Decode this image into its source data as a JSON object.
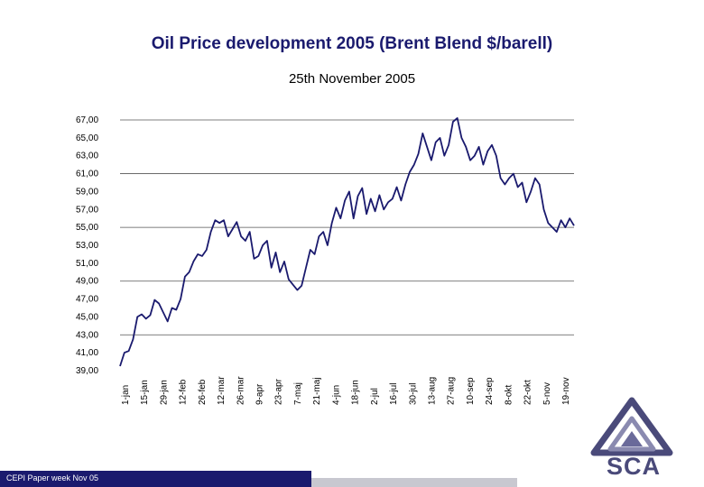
{
  "slide": {
    "footer_text": "CEPI Paper week Nov 05",
    "logo_text": "SCA"
  },
  "colors": {
    "title": "#1a1a6e",
    "line": "#1a1a6e",
    "grid": "#555555",
    "footer": "#1a1a6e",
    "logo": "#4a4a7a"
  },
  "chart_data": {
    "type": "line",
    "title": "Oil Price development 2005 (Brent Blend $/barell)",
    "subtitle": "25th November 2005",
    "xlabel": "",
    "ylabel": "",
    "ylim": [
      39,
      67
    ],
    "grid": true,
    "yticks": [
      "67,00",
      "65,00",
      "63,00",
      "61,00",
      "59,00",
      "57,00",
      "55,00",
      "53,00",
      "51,00",
      "49,00",
      "47,00",
      "45,00",
      "43,00",
      "41,00",
      "39,00"
    ],
    "ytick_values": [
      67,
      65,
      63,
      61,
      59,
      57,
      55,
      53,
      51,
      49,
      47,
      45,
      43,
      41,
      39
    ],
    "gridlines": [
      67,
      61,
      55,
      49,
      43
    ],
    "xticks": [
      "1-jan",
      "15-jan",
      "29-jan",
      "12-feb",
      "26-feb",
      "12-mar",
      "26-mar",
      "9-apr",
      "23-apr",
      "7-maj",
      "21-maj",
      "4-jun",
      "18-jun",
      "2-jul",
      "16-jul",
      "30-jul",
      "13-aug",
      "27-aug",
      "10-sep",
      "24-sep",
      "8-okt",
      "22-okt",
      "5-nov",
      "19-nov"
    ],
    "series": [
      {
        "name": "Brent Blend",
        "values": [
          39.5,
          41.0,
          41.2,
          42.5,
          45.0,
          45.3,
          44.8,
          45.2,
          46.9,
          46.5,
          45.5,
          44.5,
          46.0,
          45.8,
          47.0,
          49.5,
          50.0,
          51.2,
          52.0,
          51.8,
          52.5,
          54.5,
          55.8,
          55.5,
          55.8,
          54.0,
          54.8,
          55.6,
          54.0,
          53.5,
          54.5,
          51.5,
          51.8,
          53.0,
          53.5,
          50.5,
          52.2,
          50.0,
          51.2,
          49.2,
          48.6,
          48.0,
          48.5,
          50.5,
          52.5,
          52.0,
          54.0,
          54.5,
          53.0,
          55.5,
          57.2,
          56.0,
          58.0,
          59.0,
          56.0,
          58.5,
          59.4,
          56.5,
          58.2,
          56.8,
          58.6,
          57.0,
          57.8,
          58.2,
          59.5,
          58.0,
          59.8,
          61.2,
          62.0,
          63.2,
          65.5,
          64.0,
          62.5,
          64.5,
          65.0,
          63.0,
          64.2,
          66.8,
          67.2,
          65.0,
          64.0,
          62.5,
          63.0,
          64.0,
          62.0,
          63.5,
          64.2,
          63.0,
          60.5,
          59.8,
          60.5,
          61.0,
          59.5,
          60.0,
          57.8,
          59.0,
          60.5,
          59.8,
          57.0,
          55.5,
          55.0,
          54.5,
          55.8,
          55.0,
          56.0,
          55.2
        ]
      }
    ]
  }
}
